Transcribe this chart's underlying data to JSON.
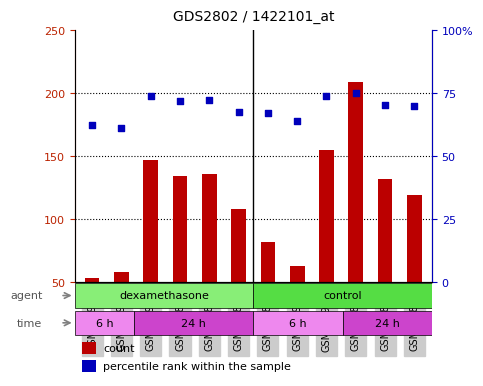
{
  "title": "GDS2802 / 1422101_at",
  "samples": [
    "GSM185924",
    "GSM185964",
    "GSM185976",
    "GSM185887",
    "GSM185890",
    "GSM185891",
    "GSM185889",
    "GSM185923",
    "GSM185977",
    "GSM185888",
    "GSM185892",
    "GSM185893"
  ],
  "counts": [
    53,
    58,
    147,
    134,
    136,
    108,
    82,
    63,
    155,
    209,
    132,
    119
  ],
  "percentiles": [
    175,
    172,
    198,
    194,
    195,
    185,
    184,
    178,
    198,
    200,
    191,
    190
  ],
  "bar_color": "#BB0000",
  "dot_color": "#0000BB",
  "left_ylim": [
    50,
    250
  ],
  "right_ylim": [
    0,
    100
  ],
  "left_yticks": [
    50,
    100,
    150,
    200,
    250
  ],
  "right_yticks": [
    0,
    25,
    50,
    75,
    100
  ],
  "right_yticklabels": [
    "0",
    "25",
    "50",
    "75",
    "100%"
  ],
  "agent_label": "agent",
  "time_label": "time",
  "groups": {
    "dexamethasone": {
      "start": 0,
      "end": 5,
      "color": "#99EE88"
    },
    "control": {
      "start": 6,
      "end": 11,
      "color": "#66DD55"
    }
  },
  "time_groups": [
    {
      "label": "6 h",
      "start": 0,
      "end": 1,
      "color": "#EE88EE"
    },
    {
      "label": "24 h",
      "start": 2,
      "end": 5,
      "color": "#DD55DD"
    },
    {
      "label": "6 h",
      "start": 6,
      "end": 8,
      "color": "#EE88EE"
    },
    {
      "label": "24 h",
      "start": 9,
      "end": 11,
      "color": "#DD55DD"
    }
  ],
  "legend_count_color": "#BB0000",
  "legend_dot_color": "#0000BB",
  "grid_color": "#000000",
  "tick_label_color_left": "#BB2200",
  "tick_label_color_right": "#0000BB",
  "bar_width": 0.5,
  "background_color": "#FFFFFF",
  "plot_bg": "#FFFFFF",
  "xlabel_color": "#555555",
  "agent_bg": "#DDDDDD"
}
